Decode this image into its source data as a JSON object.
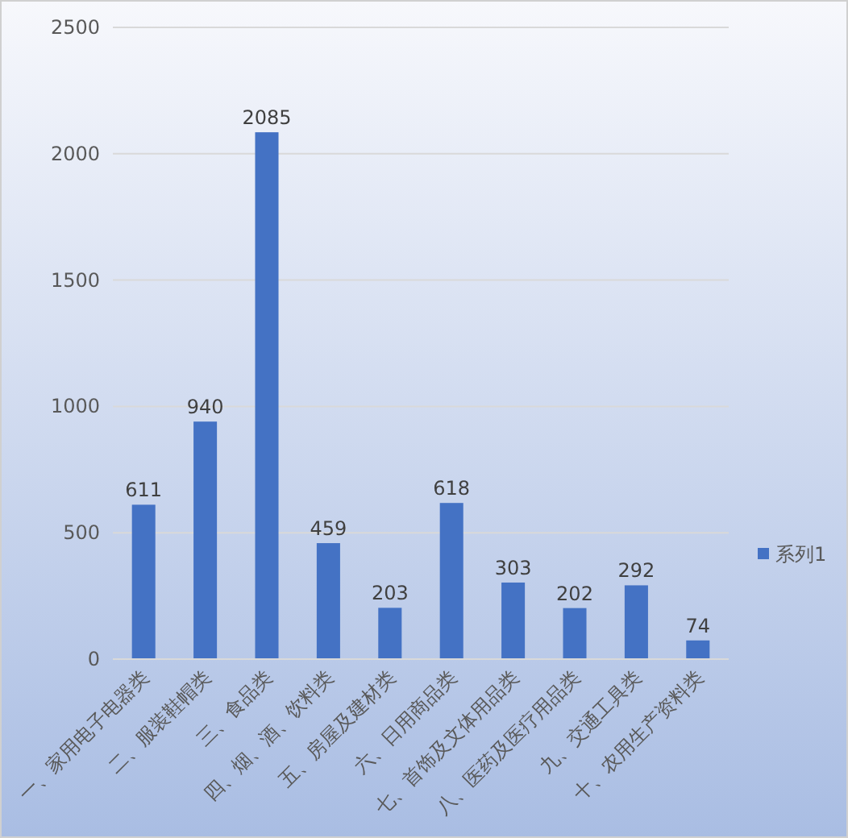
{
  "chart_data": {
    "type": "bar",
    "categories": [
      "一、家用电子电器类",
      "二、服装鞋帽类",
      "三、食品类",
      "四、烟、酒、饮料类",
      "五、房屋及建材类",
      "六、日用商品类",
      "七、首饰及文体用品类",
      "八、医药及医疗用品类",
      "九、交通工具类",
      "十、农用生产资料类"
    ],
    "series": [
      {
        "name": "系列1",
        "color": "#4472c4",
        "values": [
          611,
          940,
          2085,
          459,
          203,
          618,
          303,
          202,
          292,
          74
        ]
      }
    ],
    "ylim": [
      0,
      2500
    ],
    "yticks": [
      0,
      500,
      1000,
      1500,
      2000,
      2500
    ],
    "grid": "y",
    "legend": "right",
    "data_labels": true
  }
}
